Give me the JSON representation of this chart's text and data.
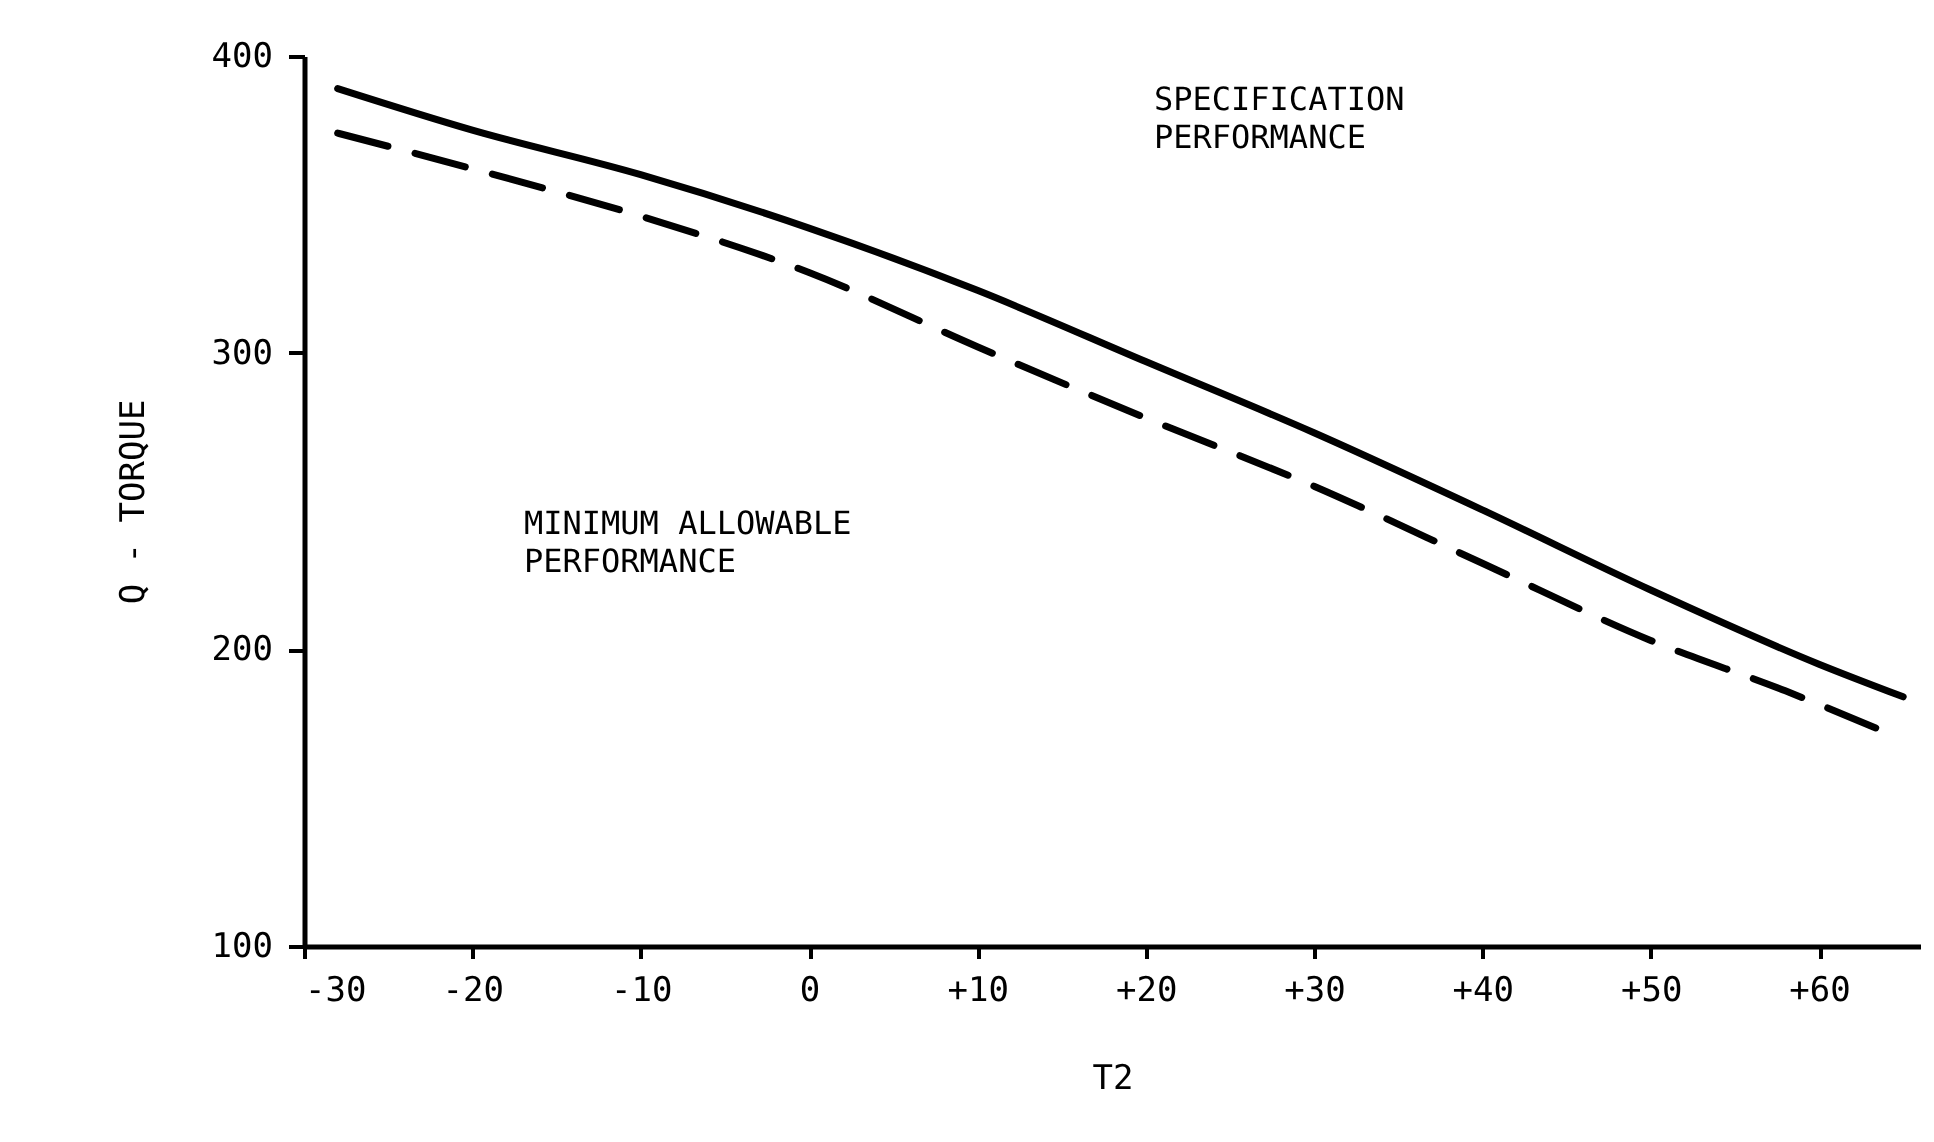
{
  "chart_data": {
    "type": "line",
    "xlabel": "T2",
    "ylabel": "Q - TORQUE",
    "x": [
      -28,
      -20,
      -10,
      0,
      10,
      20,
      30,
      40,
      50,
      60,
      65
    ],
    "series": [
      {
        "color": "#000000",
        "line_style": "solid",
        "values": [
          389,
          375,
          360,
          342,
          321,
          297,
          273,
          247,
          220,
          195,
          184
        ]
      },
      {
        "color": "#000000",
        "line_style": "dashed",
        "x": [
          -28,
          -20,
          -10,
          0,
          10,
          20,
          30,
          40,
          50,
          58,
          64
        ],
        "values": [
          374,
          362,
          346,
          327,
          302,
          278,
          255,
          229,
          203,
          186,
          172
        ]
      }
    ],
    "annotations": [
      "SPECIFICATION",
      "PERFORMANCE",
      "MINIMUM ALLOWABLE",
      "PERFORMANCE"
    ],
    "xlim": [
      -30,
      66
    ],
    "ylim": [
      100,
      400
    ],
    "xticks": [
      -30,
      -20,
      -10,
      0,
      {
        "value": 10,
        "label": "+10"
      },
      {
        "value": 20,
        "label": "+20"
      },
      {
        "value": 30,
        "label": "+30"
      },
      {
        "value": 40,
        "label": "+40"
      },
      {
        "value": 50,
        "label": "+50"
      },
      {
        "value": 60,
        "label": "+60"
      }
    ],
    "yticks": [
      100,
      200,
      300,
      400
    ],
    "grid": false,
    "marker": "none"
  }
}
